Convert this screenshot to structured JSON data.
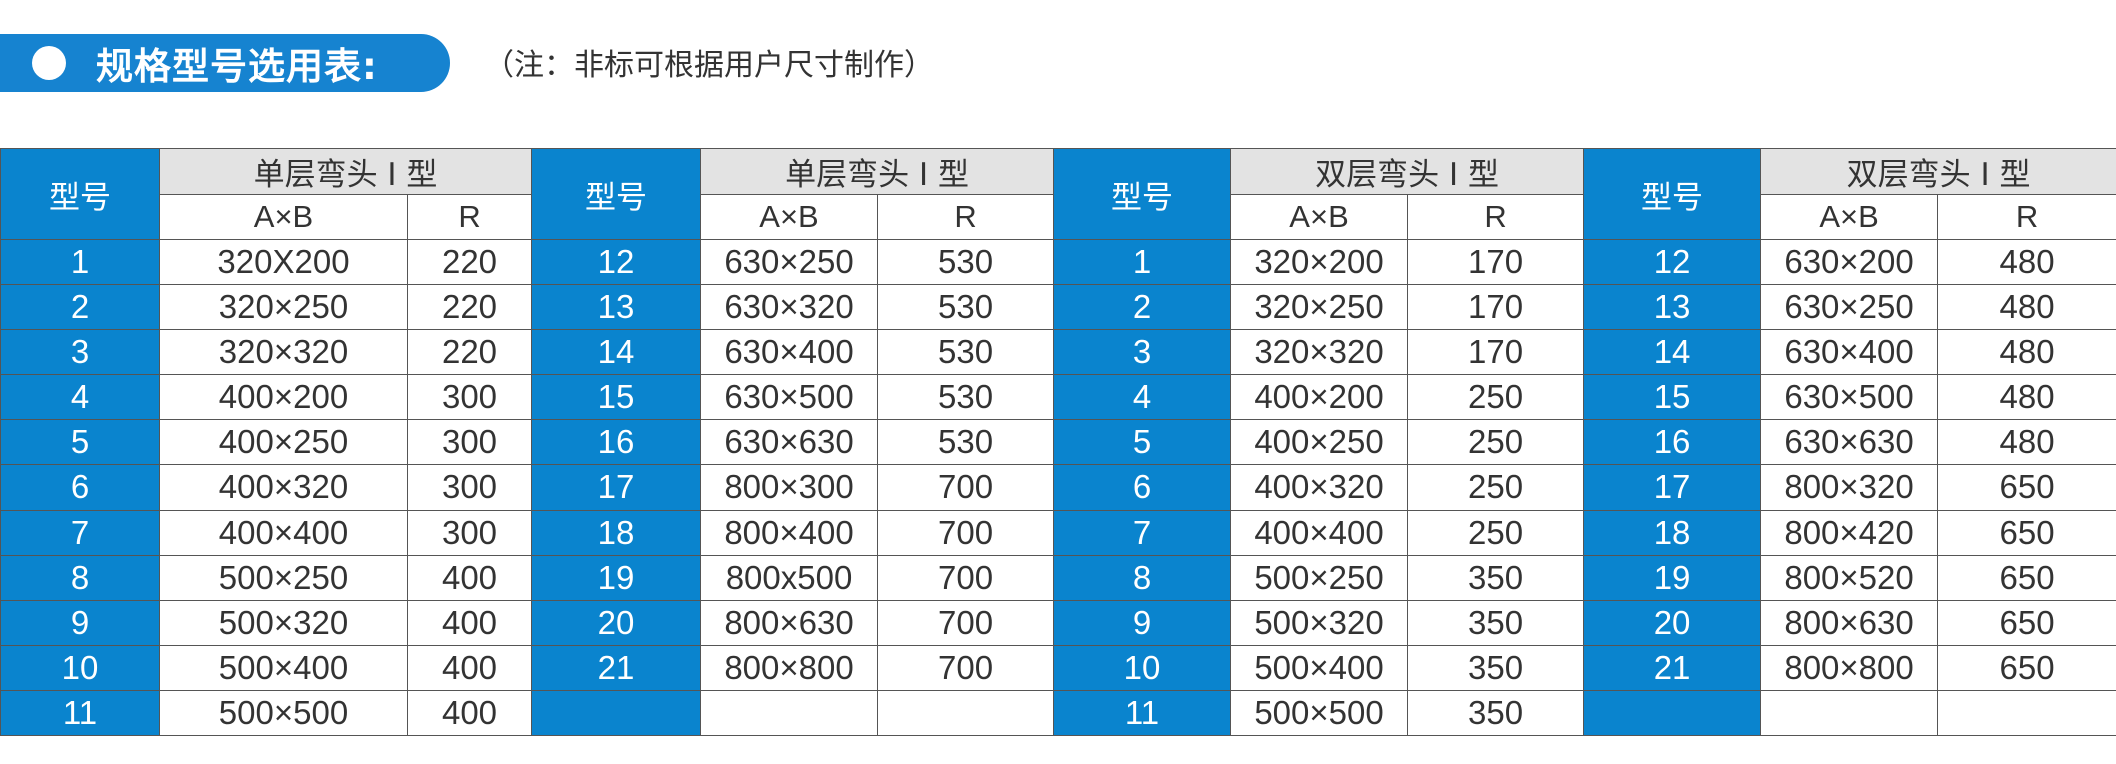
{
  "header": {
    "title": "规格型号选用表:",
    "note": "（注：非标可根据用户尺寸制作）"
  },
  "table": {
    "model_header": "型号",
    "groups": [
      {
        "title": "单层弯头 I 型",
        "col_ab": "A×B",
        "col_r": "R"
      },
      {
        "title": "单层弯头 I 型",
        "col_ab": "A×B",
        "col_r": "R"
      },
      {
        "title": "双层弯头 I 型",
        "col_ab": "A×B",
        "col_r": "R"
      },
      {
        "title": "双层弯头 I 型",
        "col_ab": "A×B",
        "col_r": "R"
      }
    ],
    "rows": [
      [
        [
          "1",
          "320X200",
          "220"
        ],
        [
          "12",
          "630×250",
          "530"
        ],
        [
          "1",
          "320×200",
          "170"
        ],
        [
          "12",
          "630×200",
          "480"
        ]
      ],
      [
        [
          "2",
          "320×250",
          "220"
        ],
        [
          "13",
          "630×320",
          "530"
        ],
        [
          "2",
          "320×250",
          "170"
        ],
        [
          "13",
          "630×250",
          "480"
        ]
      ],
      [
        [
          "3",
          "320×320",
          "220"
        ],
        [
          "14",
          "630×400",
          "530"
        ],
        [
          "3",
          "320×320",
          "170"
        ],
        [
          "14",
          "630×400",
          "480"
        ]
      ],
      [
        [
          "4",
          "400×200",
          "300"
        ],
        [
          "15",
          "630×500",
          "530"
        ],
        [
          "4",
          "400×200",
          "250"
        ],
        [
          "15",
          "630×500",
          "480"
        ]
      ],
      [
        [
          "5",
          "400×250",
          "300"
        ],
        [
          "16",
          "630×630",
          "530"
        ],
        [
          "5",
          "400×250",
          "250"
        ],
        [
          "16",
          "630×630",
          "480"
        ]
      ],
      [
        [
          "6",
          "400×320",
          "300"
        ],
        [
          "17",
          "800×300",
          "700"
        ],
        [
          "6",
          "400×320",
          "250"
        ],
        [
          "17",
          "800×320",
          "650"
        ]
      ],
      [
        [
          "7",
          "400×400",
          "300"
        ],
        [
          "18",
          "800×400",
          "700"
        ],
        [
          "7",
          "400×400",
          "250"
        ],
        [
          "18",
          "800×420",
          "650"
        ]
      ],
      [
        [
          "8",
          "500×250",
          "400"
        ],
        [
          "19",
          "800x500",
          "700"
        ],
        [
          "8",
          "500×250",
          "350"
        ],
        [
          "19",
          "800×520",
          "650"
        ]
      ],
      [
        [
          "9",
          "500×320",
          "400"
        ],
        [
          "20",
          "800×630",
          "700"
        ],
        [
          "9",
          "500×320",
          "350"
        ],
        [
          "20",
          "800×630",
          "650"
        ]
      ],
      [
        [
          "10",
          "500×400",
          "400"
        ],
        [
          "21",
          "800×800",
          "700"
        ],
        [
          "10",
          "500×400",
          "350"
        ],
        [
          "21",
          "800×800",
          "650"
        ]
      ],
      [
        [
          "11",
          "500×500",
          "400"
        ],
        [
          "",
          "",
          ""
        ],
        [
          "11",
          "500×500",
          "350"
        ],
        [
          "",
          "",
          ""
        ]
      ]
    ]
  }
}
